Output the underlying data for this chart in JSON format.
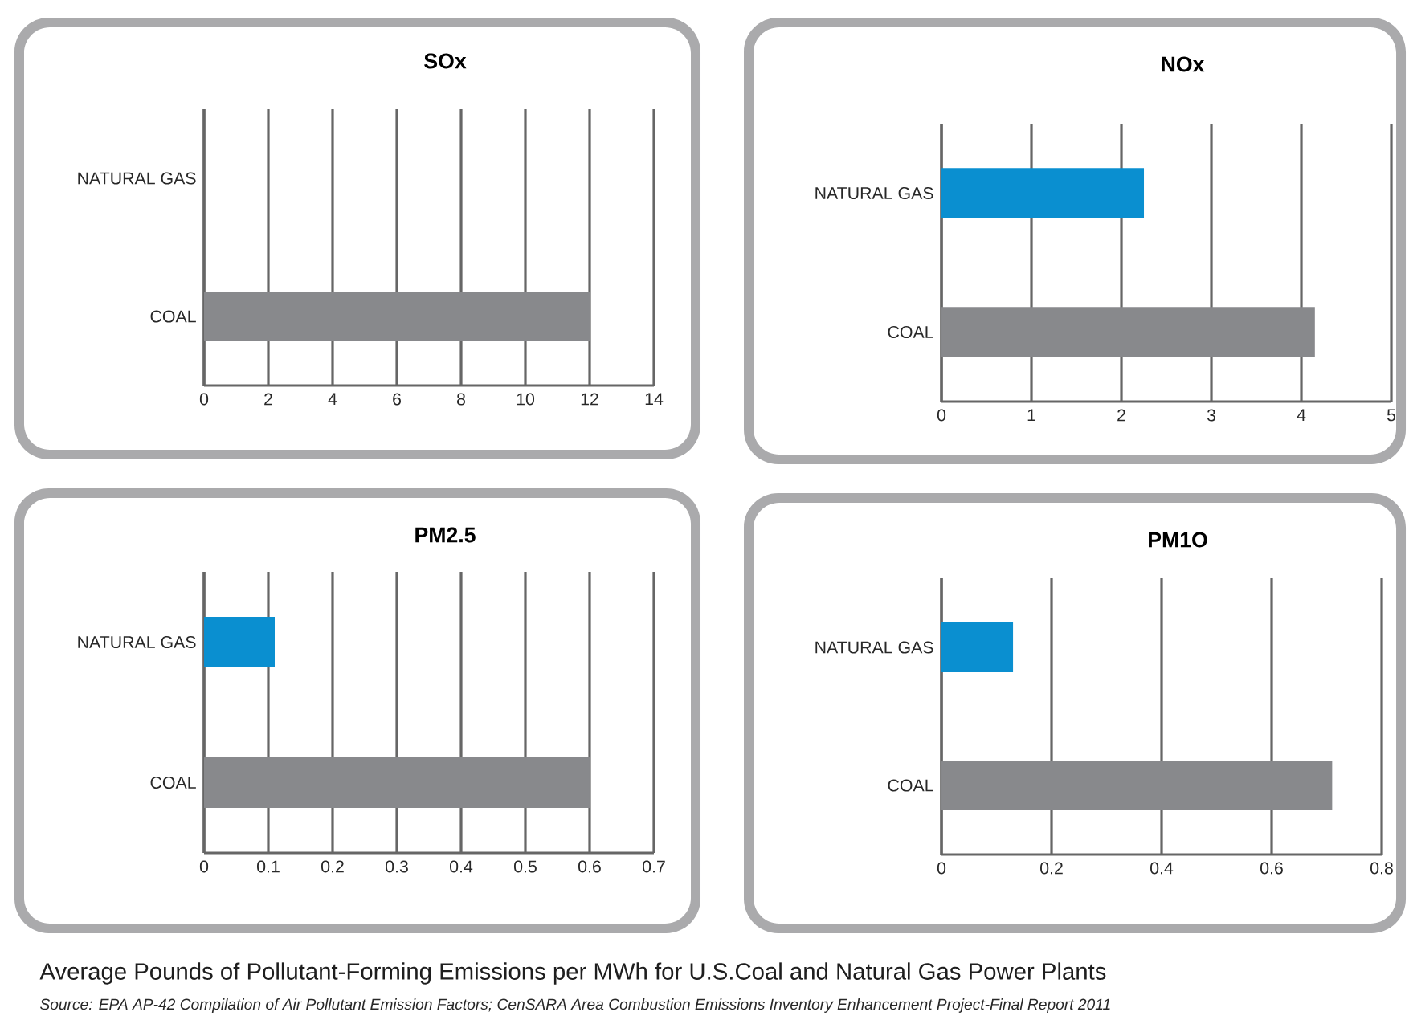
{
  "chart_data": [
    {
      "type": "bar",
      "orientation": "horizontal",
      "title": "SOx",
      "categories": [
        "NATURAL GAS",
        "COAL"
      ],
      "values": [
        0,
        12
      ],
      "colors": [
        "#0a8fd0",
        "#88898c"
      ],
      "xlim": [
        0,
        14
      ],
      "xticks": [
        0,
        2,
        4,
        6,
        8,
        10,
        12,
        14
      ],
      "grid": "x"
    },
    {
      "type": "bar",
      "orientation": "horizontal",
      "title": "NOx",
      "categories": [
        "NATURAL GAS",
        "COAL"
      ],
      "values": [
        2.25,
        4.15
      ],
      "colors": [
        "#0a8fd0",
        "#88898c"
      ],
      "xlim": [
        0,
        5
      ],
      "xticks": [
        0,
        1,
        2,
        3,
        4,
        5
      ],
      "grid": "x"
    },
    {
      "type": "bar",
      "orientation": "horizontal",
      "title": "PM2.5",
      "categories": [
        "NATURAL GAS",
        "COAL"
      ],
      "values": [
        0.11,
        0.6
      ],
      "colors": [
        "#0a8fd0",
        "#88898c"
      ],
      "xlim": [
        0,
        0.7
      ],
      "xticks": [
        0,
        0.1,
        0.2,
        0.3,
        0.4,
        0.5,
        0.6,
        0.7
      ],
      "grid": "x"
    },
    {
      "type": "bar",
      "orientation": "horizontal",
      "title": "PM1O",
      "categories": [
        "NATURAL GAS",
        "COAL"
      ],
      "values": [
        0.13,
        0.71
      ],
      "colors": [
        "#0a8fd0",
        "#88898c"
      ],
      "xlim": [
        0,
        0.8
      ],
      "xticks": [
        0,
        0.2,
        0.4,
        0.6,
        0.8
      ],
      "grid": "x"
    },
    {
      "type": "other",
      "title": "Average Pounds of Pollutant-Forming Emissions per MWh for U.S.Coal and Natural Gas Power Plants",
      "annotations": [
        "Source: EPA AP-42 Compilation of Air Pollutant Emission Factors; CenSARA Area Combustion Emissions Inventory Enhancement Project-Final Report 2011"
      ]
    }
  ]
}
